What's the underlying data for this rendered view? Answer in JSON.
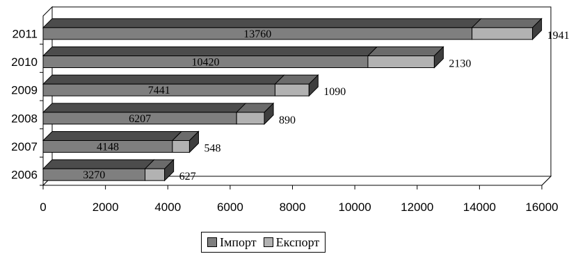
{
  "chart_data": {
    "type": "bar",
    "orientation": "horizontal",
    "stacked": true,
    "style": "3d",
    "categories": [
      "2006",
      "2007",
      "2008",
      "2009",
      "2010",
      "2011"
    ],
    "series": [
      {
        "name": "Імпорт",
        "values": [
          3270,
          4148,
          6207,
          7441,
          10420,
          13760
        ],
        "color": "#7f7f7f"
      },
      {
        "name": "Експорт",
        "values": [
          627,
          548,
          890,
          1090,
          2130,
          1941
        ],
        "color": "#b2b2b2"
      }
    ],
    "x_ticks": [
      "0",
      "2000",
      "4000",
      "6000",
      "8000",
      "10000",
      "12000",
      "14000",
      "16000"
    ],
    "xlim": [
      0,
      16000
    ],
    "grid": "vertical",
    "legend_position": "bottom"
  }
}
